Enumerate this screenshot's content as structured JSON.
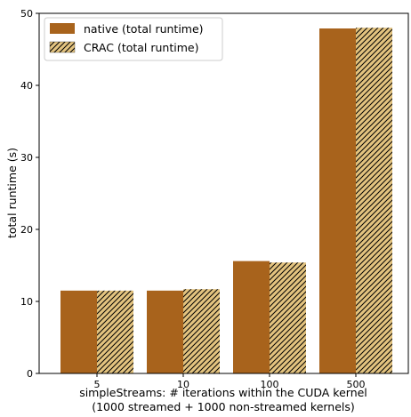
{
  "chart_data": {
    "type": "bar",
    "categories": [
      "5",
      "10",
      "100",
      "500"
    ],
    "series": [
      {
        "name": "native (total runtime)",
        "values": [
          11.5,
          11.5,
          15.6,
          47.9
        ],
        "color": "#a8631c",
        "hatch": false
      },
      {
        "name": "CRAC (total runtime)",
        "values": [
          11.5,
          11.7,
          15.4,
          48.0
        ],
        "color": "#e3c37f",
        "hatch": true
      }
    ],
    "xlabel": "simpleStreams: # iterations within the CUDA kernel",
    "xlabel2": "(1000 streamed + 1000 non-streamed kernels)",
    "ylabel": "total runtime (s)",
    "ylim": [
      0,
      50
    ],
    "yticks": [
      "0",
      "10",
      "20",
      "30",
      "40",
      "50"
    ],
    "legend_position": "top-left",
    "grid": false
  }
}
